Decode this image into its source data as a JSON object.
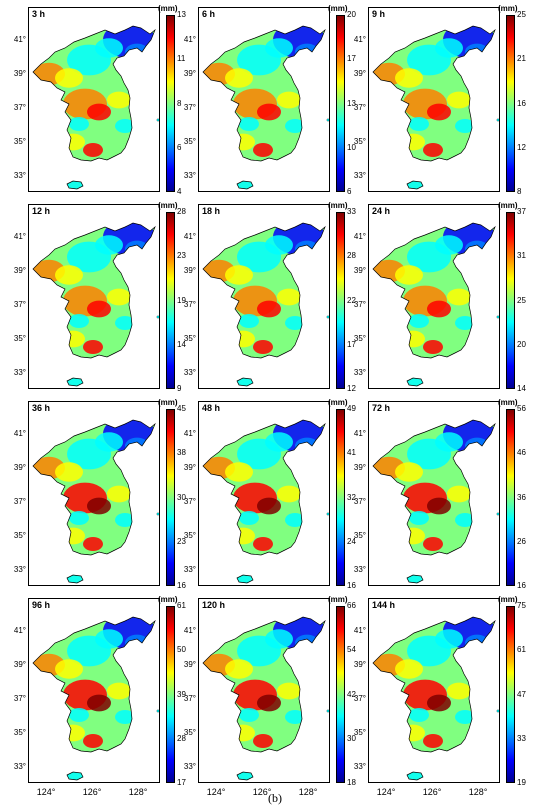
{
  "caption": "(b)",
  "latitude_ticks": [
    "41°",
    "39°",
    "37°",
    "35°",
    "33°"
  ],
  "longitude_ticks": [
    "124°",
    "126°",
    "128°"
  ],
  "colorbar_unit": "(mm)",
  "colormap": [
    "#00008f",
    "#0000ff",
    "#0080ff",
    "#00ffff",
    "#80ff80",
    "#ffff00",
    "#ff8000",
    "#ff0000",
    "#800000"
  ],
  "chart_data": [
    {
      "type": "heatmap",
      "title": "3 h",
      "colorbar_ticks": [
        "13",
        "11",
        "8",
        "6",
        "4"
      ]
    },
    {
      "type": "heatmap",
      "title": "6 h",
      "colorbar_ticks": [
        "20",
        "17",
        "13",
        "10",
        "6"
      ]
    },
    {
      "type": "heatmap",
      "title": "9 h",
      "colorbar_ticks": [
        "25",
        "21",
        "16",
        "12",
        "8"
      ]
    },
    {
      "type": "heatmap",
      "title": "12 h",
      "colorbar_ticks": [
        "28",
        "23",
        "19",
        "14",
        "9"
      ]
    },
    {
      "type": "heatmap",
      "title": "18 h",
      "colorbar_ticks": [
        "33",
        "28",
        "22",
        "17",
        "12"
      ]
    },
    {
      "type": "heatmap",
      "title": "24 h",
      "colorbar_ticks": [
        "37",
        "31",
        "25",
        "20",
        "14"
      ]
    },
    {
      "type": "heatmap",
      "title": "36 h",
      "colorbar_ticks": [
        "45",
        "38",
        "30",
        "23",
        "16"
      ]
    },
    {
      "type": "heatmap",
      "title": "48 h",
      "colorbar_ticks": [
        "49",
        "41",
        "32",
        "24",
        "16"
      ]
    },
    {
      "type": "heatmap",
      "title": "72 h",
      "colorbar_ticks": [
        "56",
        "46",
        "36",
        "26",
        "16"
      ]
    },
    {
      "type": "heatmap",
      "title": "96 h",
      "colorbar_ticks": [
        "61",
        "50",
        "39",
        "28",
        "17"
      ]
    },
    {
      "type": "heatmap",
      "title": "120 h",
      "colorbar_ticks": [
        "66",
        "54",
        "42",
        "30",
        "18"
      ]
    },
    {
      "type": "heatmap",
      "title": "144 h",
      "colorbar_ticks": [
        "75",
        "61",
        "47",
        "33",
        "19"
      ]
    }
  ]
}
